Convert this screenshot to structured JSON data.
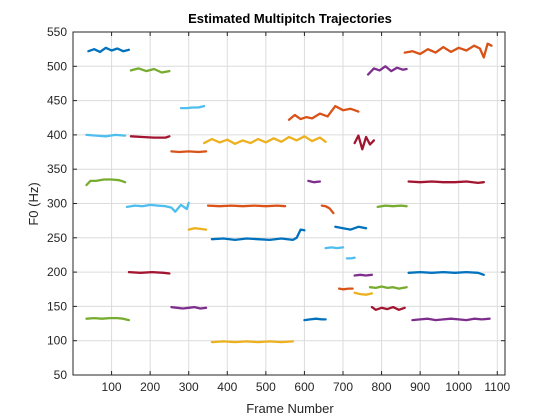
{
  "chart_data": {
    "type": "line",
    "title": "Estimated Multipitch Trajectories",
    "xlabel": "Frame Number",
    "ylabel": "F0 (Hz)",
    "xlim": [
      0,
      1120
    ],
    "ylim": [
      50,
      550
    ],
    "xticks": [
      100,
      200,
      300,
      400,
      500,
      600,
      700,
      800,
      900,
      1000,
      1100
    ],
    "yticks": [
      50,
      100,
      150,
      200,
      250,
      300,
      350,
      400,
      450,
      500,
      550
    ],
    "grid": true,
    "box": true,
    "colors": {
      "blue": "#0072BD",
      "orange": "#D95319",
      "yellow": "#EDB120",
      "purple": "#7E2F8E",
      "green": "#77AC30",
      "cyan": "#4DBEEE",
      "red": "#A2142F"
    },
    "series": [
      {
        "color": "blue",
        "x": [
          40,
          55,
          70,
          85,
          100,
          115,
          130,
          145
        ],
        "y": [
          522,
          525,
          521,
          527,
          523,
          526,
          522,
          524
        ]
      },
      {
        "color": "green",
        "x": [
          150,
          170,
          190,
          210,
          230,
          250
        ],
        "y": [
          494,
          497,
          493,
          496,
          491,
          493
        ]
      },
      {
        "color": "cyan",
        "x": [
          280,
          295,
          310,
          325,
          340
        ],
        "y": [
          439,
          439,
          440,
          440,
          442
        ]
      },
      {
        "color": "orange",
        "x": [
          560,
          575,
          590,
          605,
          620,
          640,
          660,
          680,
          700,
          720,
          740
        ],
        "y": [
          422,
          429,
          423,
          426,
          424,
          431,
          427,
          442,
          436,
          438,
          434
        ]
      },
      {
        "color": "purple",
        "x": [
          765,
          780,
          795,
          810,
          825,
          840,
          855,
          865
        ],
        "y": [
          488,
          497,
          494,
          500,
          493,
          498,
          495,
          496
        ]
      },
      {
        "color": "orange",
        "x": [
          860,
          880,
          900,
          920,
          940,
          960,
          980,
          1000,
          1020,
          1040,
          1055,
          1065,
          1075,
          1085
        ],
        "y": [
          520,
          522,
          518,
          525,
          520,
          528,
          521,
          527,
          523,
          530,
          526,
          513,
          533,
          530
        ]
      },
      {
        "color": "cyan",
        "x": [
          35,
          60,
          85,
          110,
          135
        ],
        "y": [
          400,
          399,
          398,
          400,
          399
        ]
      },
      {
        "color": "red",
        "x": [
          150,
          180,
          210,
          240,
          250
        ],
        "y": [
          398,
          397,
          396,
          396,
          398
        ]
      },
      {
        "color": "orange",
        "x": [
          255,
          275,
          300,
          325,
          345
        ],
        "y": [
          376,
          375,
          376,
          375,
          376
        ]
      },
      {
        "color": "yellow",
        "x": [
          340,
          360,
          380,
          400,
          420,
          440,
          460,
          480,
          500,
          520,
          540,
          560,
          580,
          600,
          620,
          640,
          655
        ],
        "y": [
          388,
          394,
          389,
          393,
          387,
          392,
          388,
          394,
          389,
          395,
          390,
          397,
          392,
          398,
          391,
          396,
          390
        ]
      },
      {
        "color": "red",
        "x": [
          730,
          740,
          750,
          760,
          770,
          780
        ],
        "y": [
          388,
          399,
          379,
          397,
          386,
          392
        ]
      },
      {
        "color": "green",
        "x": [
          35,
          45,
          60,
          80,
          100,
          120,
          135
        ],
        "y": [
          327,
          333,
          333,
          335,
          335,
          334,
          331
        ]
      },
      {
        "color": "cyan",
        "x": [
          140,
          160,
          180,
          200,
          220,
          240,
          255,
          265,
          280,
          295,
          300
        ],
        "y": [
          295,
          297,
          296,
          298,
          297,
          296,
          294,
          288,
          298,
          292,
          301
        ]
      },
      {
        "color": "orange",
        "x": [
          350,
          380,
          410,
          440,
          470,
          500,
          530,
          550
        ],
        "y": [
          297,
          296,
          297,
          296,
          297,
          296,
          297,
          296
        ]
      },
      {
        "color": "purple",
        "x": [
          610,
          625,
          640
        ],
        "y": [
          333,
          331,
          332
        ]
      },
      {
        "color": "orange",
        "x": [
          645,
          655,
          665,
          675
        ],
        "y": [
          297,
          296,
          293,
          286
        ]
      },
      {
        "color": "green",
        "x": [
          790,
          810,
          830,
          850,
          865
        ],
        "y": [
          295,
          297,
          296,
          297,
          296
        ]
      },
      {
        "color": "red",
        "x": [
          870,
          900,
          930,
          960,
          990,
          1020,
          1050,
          1065
        ],
        "y": [
          332,
          331,
          332,
          331,
          331,
          332,
          330,
          331
        ]
      },
      {
        "color": "yellow",
        "x": [
          300,
          315,
          330,
          345
        ],
        "y": [
          262,
          264,
          263,
          262
        ]
      },
      {
        "color": "blue",
        "x": [
          360,
          390,
          420,
          450,
          480,
          510,
          540,
          570,
          580,
          590,
          600
        ],
        "y": [
          248,
          249,
          247,
          249,
          248,
          247,
          249,
          247,
          250,
          262,
          261
        ]
      },
      {
        "color": "cyan",
        "x": [
          655,
          670,
          685,
          700
        ],
        "y": [
          235,
          236,
          235,
          236
        ]
      },
      {
        "color": "blue",
        "x": [
          680,
          700,
          720,
          740,
          760
        ],
        "y": [
          266,
          264,
          262,
          266,
          264
        ]
      },
      {
        "color": "cyan",
        "x": [
          710,
          720,
          730
        ],
        "y": [
          220,
          220,
          221
        ]
      },
      {
        "color": "red",
        "x": [
          145,
          175,
          205,
          235,
          250
        ],
        "y": [
          200,
          199,
          200,
          199,
          198
        ]
      },
      {
        "color": "blue",
        "x": [
          870,
          900,
          930,
          960,
          990,
          1020,
          1050,
          1065
        ],
        "y": [
          199,
          200,
          199,
          200,
          199,
          200,
          199,
          196
        ]
      },
      {
        "color": "purple",
        "x": [
          730,
          745,
          760,
          775
        ],
        "y": [
          195,
          196,
          195,
          196
        ]
      },
      {
        "color": "orange",
        "x": [
          690,
          700,
          715,
          725
        ],
        "y": [
          176,
          175,
          176,
          176
        ]
      },
      {
        "color": "yellow",
        "x": [
          730,
          745,
          760,
          775
        ],
        "y": [
          170,
          168,
          167,
          169
        ]
      },
      {
        "color": "green",
        "x": [
          770,
          785,
          800,
          815,
          830,
          845,
          865
        ],
        "y": [
          178,
          177,
          179,
          177,
          178,
          176,
          178
        ]
      },
      {
        "color": "purple",
        "x": [
          255,
          270,
          285,
          300,
          315,
          330,
          345
        ],
        "y": [
          149,
          148,
          147,
          148,
          149,
          147,
          148
        ]
      },
      {
        "color": "red",
        "x": [
          775,
          785,
          800,
          815,
          830,
          845,
          860
        ],
        "y": [
          149,
          145,
          148,
          146,
          149,
          145,
          148
        ]
      },
      {
        "color": "purple",
        "x": [
          880,
          900,
          920,
          940,
          960,
          980,
          1000,
          1020,
          1040,
          1060,
          1080
        ],
        "y": [
          130,
          131,
          132,
          130,
          131,
          132,
          131,
          130,
          132,
          131,
          132
        ]
      },
      {
        "color": "green",
        "x": [
          35,
          55,
          75,
          95,
          115,
          130,
          145
        ],
        "y": [
          132,
          133,
          132,
          133,
          133,
          132,
          130
        ]
      },
      {
        "color": "blue",
        "x": [
          600,
          615,
          630,
          645,
          655
        ],
        "y": [
          130,
          131,
          132,
          131,
          131
        ]
      },
      {
        "color": "yellow",
        "x": [
          360,
          390,
          420,
          450,
          480,
          510,
          540,
          570
        ],
        "y": [
          98,
          99,
          98,
          99,
          98,
          99,
          98,
          99
        ]
      }
    ]
  }
}
